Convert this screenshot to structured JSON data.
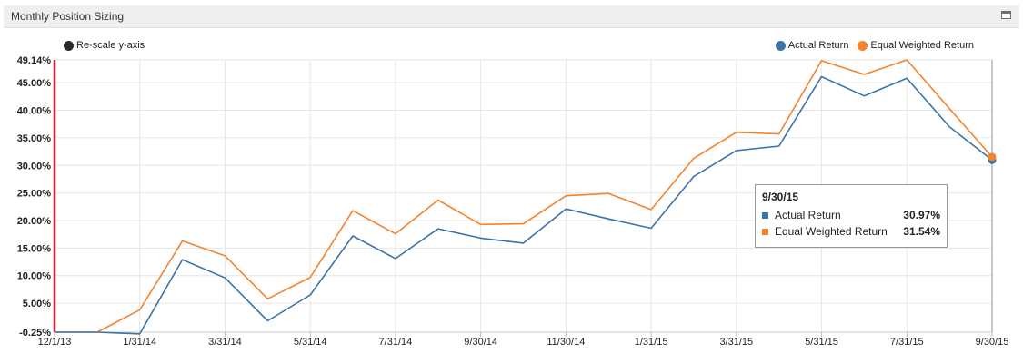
{
  "panel": {
    "title": "Monthly Position Sizing"
  },
  "controls": {
    "rescale_label": "Re-scale y-axis"
  },
  "colors": {
    "actual": "#3a74ab",
    "equal": "#f5832d",
    "axis_line": "#cc2233",
    "grid": "#e6e6e6",
    "rescale_dot": "#2a2a2a"
  },
  "chart_data": {
    "type": "line",
    "x": [
      "12/1/13",
      "12/31/13",
      "1/31/14",
      "2/28/14",
      "3/31/14",
      "4/30/14",
      "5/31/14",
      "6/30/14",
      "7/31/14",
      "8/31/14",
      "9/30/14",
      "10/31/14",
      "11/30/14",
      "12/31/14",
      "1/31/15",
      "2/28/15",
      "3/31/15",
      "4/30/15",
      "5/31/15",
      "6/30/15",
      "7/31/15",
      "8/31/15",
      "9/30/15"
    ],
    "x_tick_labels": [
      "12/1/13",
      "1/31/14",
      "3/31/14",
      "5/31/14",
      "7/31/14",
      "9/30/14",
      "11/30/14",
      "1/31/15",
      "3/31/15",
      "5/31/15",
      "7/31/15",
      "9/30/15"
    ],
    "series": [
      {
        "name": "Actual Return",
        "values": [
          -0.25,
          -0.25,
          -0.55,
          12.9,
          9.6,
          1.8,
          6.5,
          17.2,
          13.1,
          18.5,
          16.8,
          15.9,
          22.1,
          20.3,
          18.6,
          28.0,
          32.7,
          33.5,
          46.1,
          42.6,
          45.8,
          37.0,
          30.97
        ]
      },
      {
        "name": "Equal Weighted Return",
        "values": [
          -0.25,
          -0.25,
          3.8,
          16.3,
          13.6,
          5.8,
          9.7,
          21.8,
          17.6,
          23.7,
          19.3,
          19.4,
          24.5,
          24.9,
          22.0,
          31.3,
          36.0,
          35.7,
          49.0,
          46.5,
          49.14,
          40.3,
          31.54
        ]
      }
    ],
    "y_ticks": [
      "49.14%",
      "45.00%",
      "40.00%",
      "35.00%",
      "30.00%",
      "25.00%",
      "20.00%",
      "15.00%",
      "10.00%",
      "5.00%",
      "-0.25%"
    ],
    "ylim": [
      -0.25,
      49.14
    ],
    "legend_position": "top-right",
    "grid": true
  },
  "tooltip": {
    "date": "9/30/15",
    "rows": [
      {
        "name": "Actual Return",
        "value": "30.97%"
      },
      {
        "name": "Equal Weighted Return",
        "value": "31.54%"
      }
    ]
  }
}
